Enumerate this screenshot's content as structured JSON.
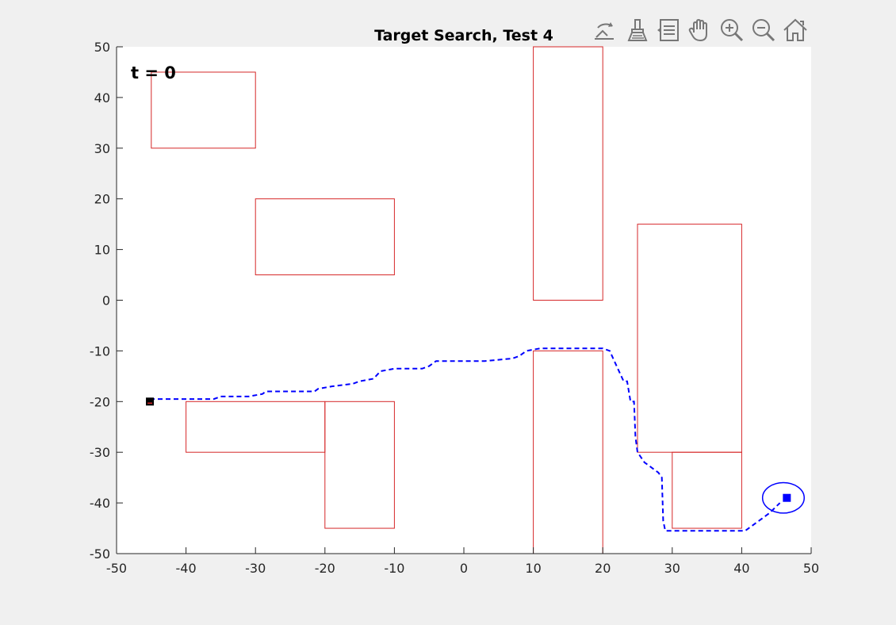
{
  "toolbar": {
    "tools": [
      {
        "name": "rotate-icon"
      },
      {
        "name": "brush-icon"
      },
      {
        "name": "datatip-icon"
      },
      {
        "name": "pan-hand-icon"
      },
      {
        "name": "zoom-in-icon"
      },
      {
        "name": "zoom-out-icon"
      },
      {
        "name": "home-icon"
      }
    ]
  },
  "chart_data": {
    "type": "line",
    "title": "Target Search, Test 4",
    "annotation": "t = 0",
    "xlim": [
      -50,
      50
    ],
    "ylim": [
      -50,
      50
    ],
    "xticks": [
      -50,
      -40,
      -30,
      -20,
      -10,
      0,
      10,
      20,
      30,
      40,
      50
    ],
    "yticks": [
      50,
      40,
      30,
      20,
      10,
      0,
      -10,
      -20,
      -30,
      -40,
      -50
    ],
    "grid": false,
    "colors": {
      "obstacle": "#d62728",
      "path": "#0000ff",
      "start": "#000000",
      "target": "#0000ff",
      "axes_bg": "#ffffff",
      "figure_bg": "#f0f0f0"
    },
    "obstacles": [
      {
        "x": [
          -45,
          -30
        ],
        "y": [
          30,
          45
        ]
      },
      {
        "x": [
          -30,
          -10
        ],
        "y": [
          5,
          20
        ]
      },
      {
        "x": [
          10,
          20
        ],
        "y": [
          0,
          50
        ]
      },
      {
        "x": [
          25,
          40
        ],
        "y": [
          -30,
          15
        ]
      },
      {
        "x": [
          -40,
          -20
        ],
        "y": [
          -30,
          -20
        ]
      },
      {
        "x": [
          -20,
          -10
        ],
        "y": [
          -45,
          -20
        ]
      },
      {
        "x": [
          10,
          20
        ],
        "y": [
          -50,
          -10
        ]
      },
      {
        "x": [
          30,
          40
        ],
        "y": [
          -45,
          -30
        ]
      }
    ],
    "path": {
      "x": [
        -45.2,
        -41,
        -36,
        -35,
        -31,
        -29,
        -28.5,
        -24,
        -21.5,
        -21,
        -19,
        -16,
        -15,
        -13,
        -12,
        -10,
        -6,
        -5,
        -4,
        0,
        3,
        7,
        8,
        9,
        11,
        20,
        21,
        21.5,
        22,
        23,
        23.5,
        24,
        24.5,
        24.7,
        25,
        26,
        28,
        28.5,
        28.7,
        29,
        30,
        35,
        40.5,
        42,
        44,
        45.5
      ],
      "y": [
        -19.5,
        -19.5,
        -19.5,
        -19,
        -19,
        -18.5,
        -18,
        -18,
        -18,
        -17.5,
        -17,
        -16.5,
        -16,
        -15.5,
        -14,
        -13.5,
        -13.5,
        -13,
        -12,
        -12,
        -12,
        -11.5,
        -11,
        -10,
        -9.5,
        -9.5,
        -10,
        -11.5,
        -13,
        -16,
        -16,
        -20,
        -20,
        -27,
        -30,
        -32,
        -34,
        -35,
        -43.5,
        -45.5,
        -45.5,
        -45.5,
        -45.5,
        -44,
        -42,
        -40
      ]
    },
    "start": {
      "x": -45.2,
      "y": -20
    },
    "target": {
      "x": 46.5,
      "y": -39
    },
    "target_ellipse": {
      "cx": 46,
      "cy": -39,
      "rx": 3,
      "ry": 3
    }
  }
}
